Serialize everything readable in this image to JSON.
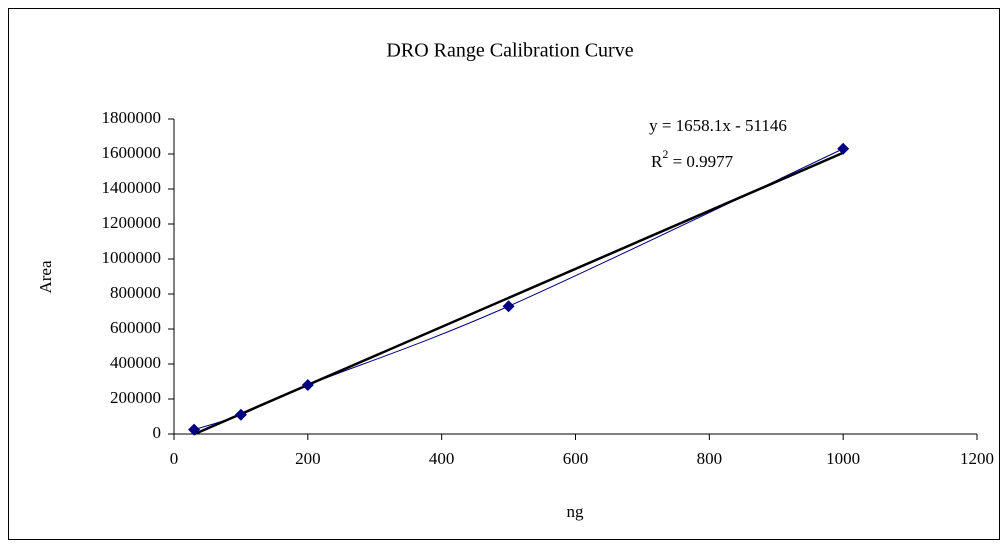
{
  "chart_data": {
    "type": "scatter",
    "title": "DRO Range Calibration Curve",
    "x_label": "ng",
    "y_label": "Area",
    "x": [
      30,
      100,
      200,
      500,
      1000
    ],
    "series": [
      {
        "name": "Area",
        "color": "#000080",
        "values": [
          25000,
          110000,
          280000,
          730000,
          1630000
        ]
      }
    ],
    "xlim": [
      0,
      1200
    ],
    "xticks": [
      0,
      200,
      400,
      600,
      800,
      1000,
      1200
    ],
    "ylim": [
      0,
      1800000
    ],
    "yticks": [
      0,
      200000,
      400000,
      600000,
      800000,
      1000000,
      1200000,
      1400000,
      1600000,
      1800000
    ],
    "grid": false,
    "trendline": {
      "slope": 1658.1,
      "intercept": -51146,
      "color": "#000000",
      "equation": "y = 1658.1x - 51146",
      "r2": {
        "base": "R",
        "sup": "2",
        "rest": " = 0.9977"
      }
    }
  }
}
